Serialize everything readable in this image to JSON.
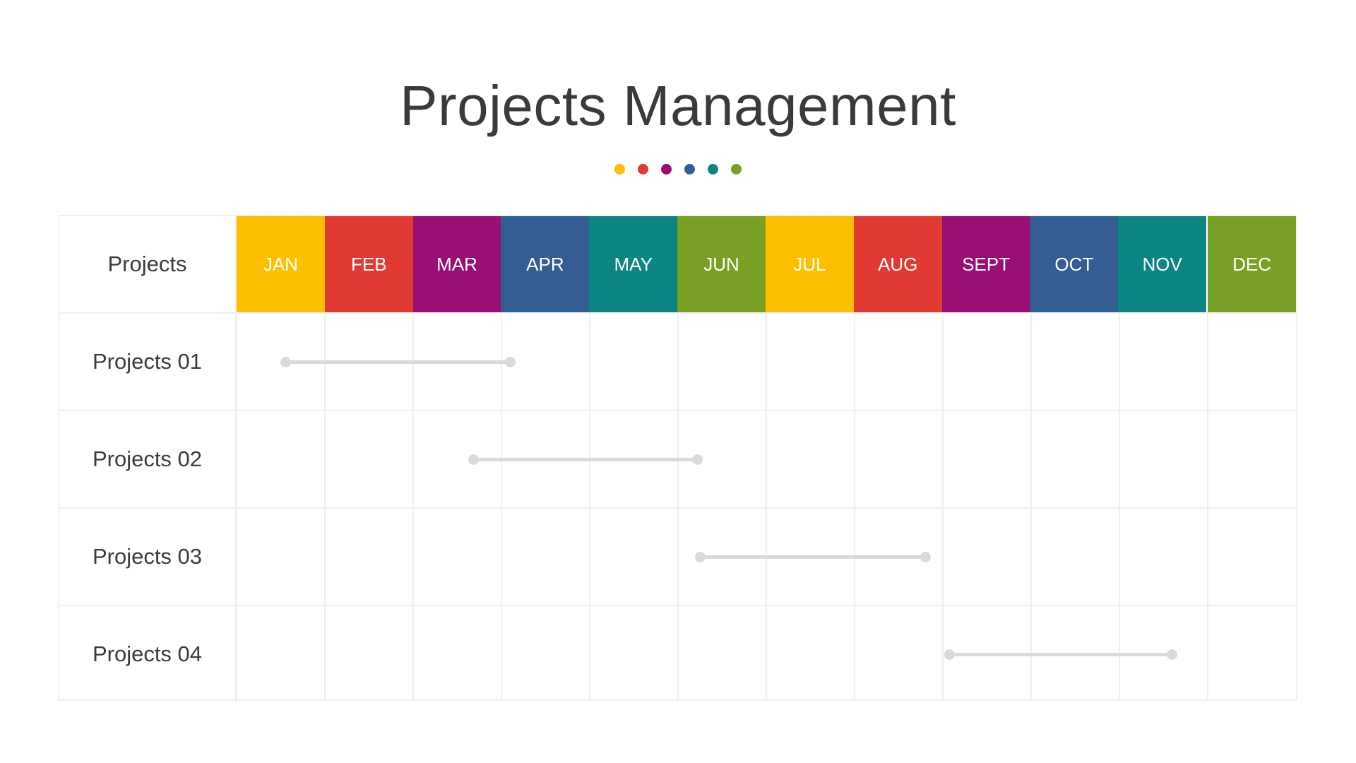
{
  "chart_data": {
    "type": "gantt",
    "title": "Projects Management",
    "header_label": "Projects",
    "categories": [
      "JAN",
      "FEB",
      "MAR",
      "APR",
      "MAY",
      "JUN",
      "JUL",
      "AUG",
      "SEPT",
      "OCT",
      "NOV",
      "DEC"
    ],
    "month_colors": [
      "#FDC000",
      "#E03A33",
      "#9A0F74",
      "#345E93",
      "#0E8585",
      "#78A024",
      "#FDC000",
      "#E03A33",
      "#9A0F74",
      "#345E93",
      "#0E8585",
      "#78A024"
    ],
    "series": [
      {
        "name": "Projects 01",
        "start": 0.55,
        "end": 3.1
      },
      {
        "name": "Projects 02",
        "start": 2.68,
        "end": 5.22
      },
      {
        "name": "Projects 03",
        "start": 5.25,
        "end": 7.81
      },
      {
        "name": "Projects 04",
        "start": 8.07,
        "end": 10.6
      }
    ],
    "bar_color": "#D9D9D9",
    "grid": true
  },
  "decor_dots": [
    "#FDC000",
    "#E03A33",
    "#9A0F74",
    "#345E93",
    "#0E8585",
    "#78A024"
  ]
}
